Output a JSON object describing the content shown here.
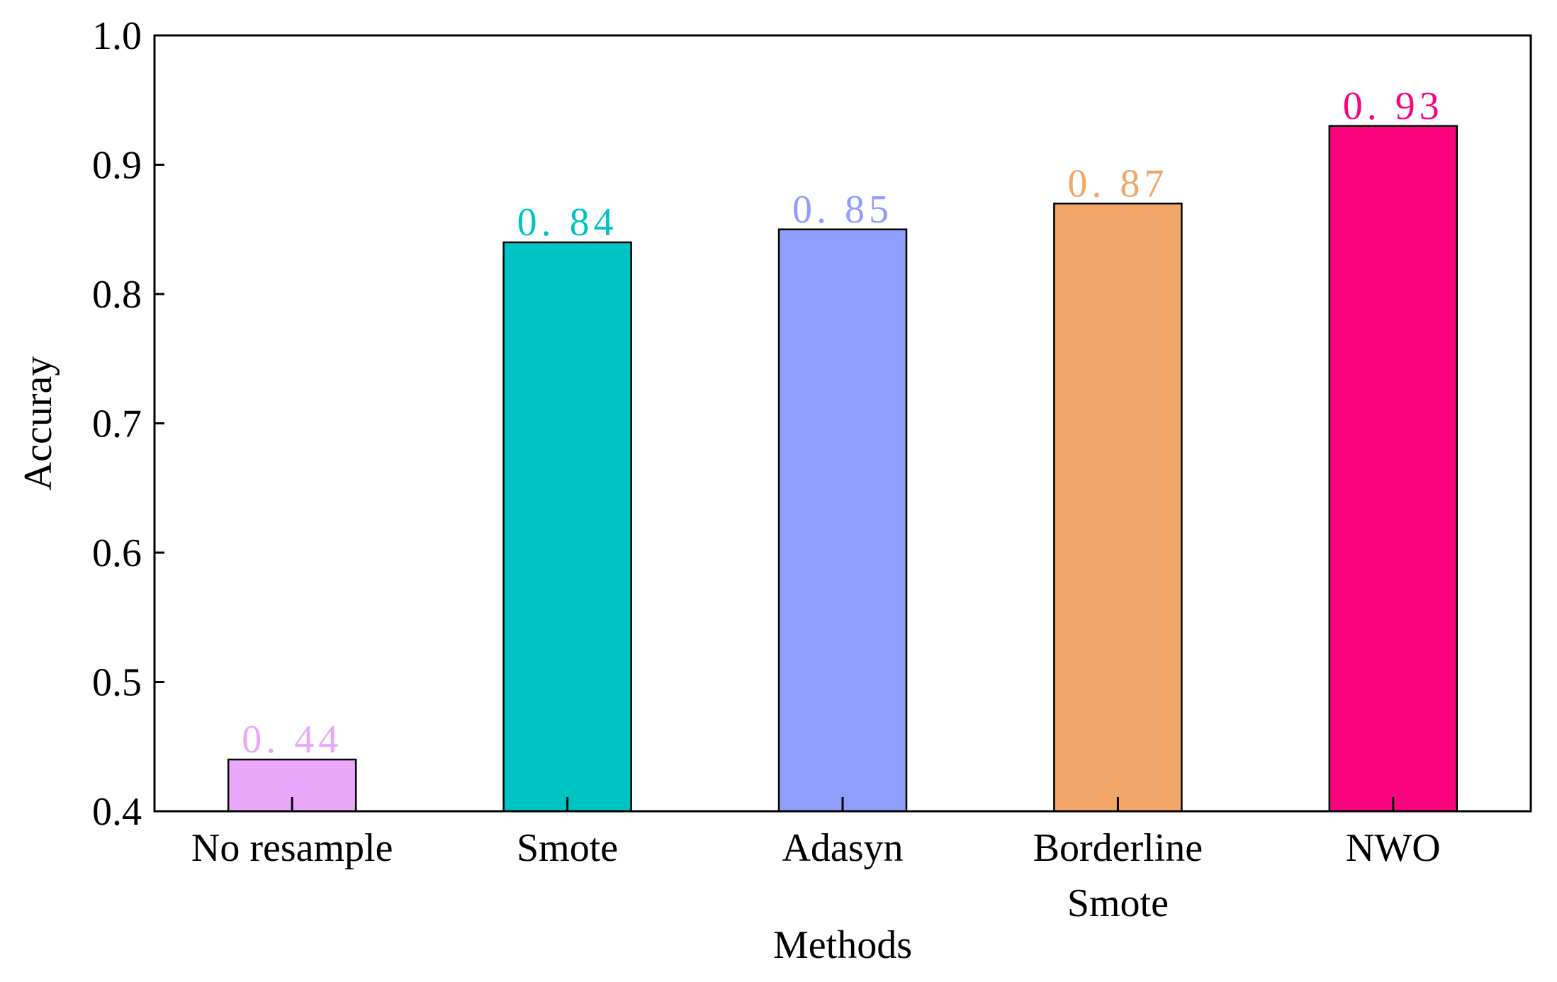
{
  "chart_data": {
    "type": "bar",
    "title": "",
    "xlabel": "Methods",
    "ylabel": "Accuray",
    "ylim": [
      0.4,
      1.0
    ],
    "yticks": [
      "0.4",
      "0.5",
      "0.6",
      "0.7",
      "0.8",
      "0.9",
      "1.0"
    ],
    "categories": [
      [
        "No resample"
      ],
      [
        "Smote"
      ],
      [
        "Adasyn"
      ],
      [
        "Borderline",
        "Smote"
      ],
      [
        "NWO"
      ]
    ],
    "values": [
      0.44,
      0.84,
      0.85,
      0.87,
      0.93
    ],
    "data_labels": [
      "0. 44",
      "0. 84",
      "0. 85",
      "0. 87",
      "0. 93"
    ],
    "colors": [
      "#EAA8FA",
      "#00C4C4",
      "#8F9DFD",
      "#F2A768",
      "#FC037E"
    ],
    "grid": false
  }
}
